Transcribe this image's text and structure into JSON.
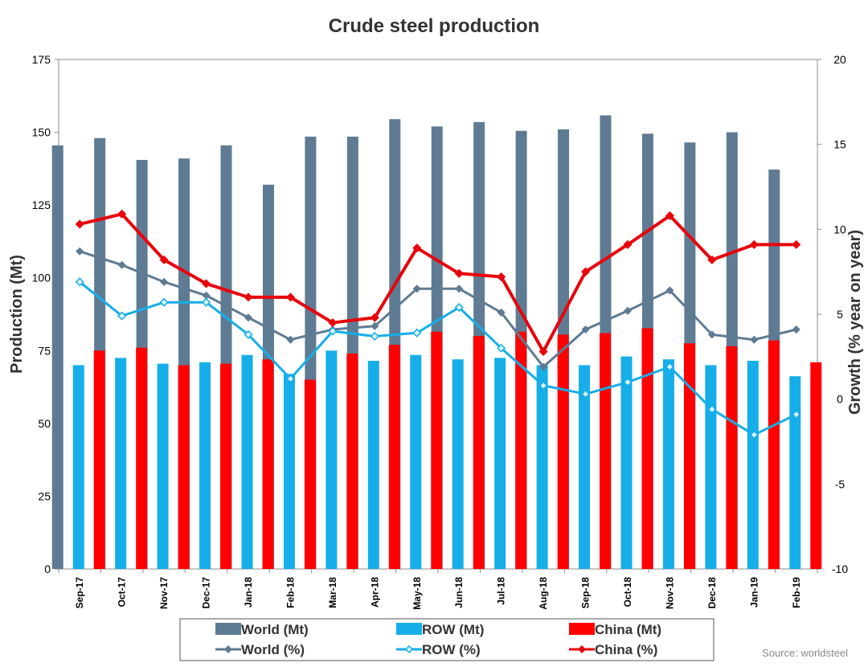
{
  "chart_data": {
    "type": "bar",
    "title": "Crude steel production",
    "ylabel": "Production (Mt)",
    "y2label": "Growth (% year on year)",
    "ylim": [
      0,
      175
    ],
    "y2lim": [
      -10,
      20
    ],
    "yticks": [
      "0",
      "25",
      "50",
      "75",
      "100",
      "125",
      "150",
      "175"
    ],
    "y2ticks": [
      "-10",
      "-5",
      "0",
      "5",
      "10",
      "15",
      "20"
    ],
    "grid": false,
    "legend_placement": "bottom",
    "categories": [
      "Sep-17",
      "Oct-17",
      "Nov-17",
      "Dec-17",
      "Jan-18",
      "Feb-18",
      "Mar-18",
      "Apr-18",
      "May-18",
      "Jun-18",
      "Jul-18",
      "Aug-18",
      "Sep-18",
      "Oct-18",
      "Nov-18",
      "Dec-18",
      "Jan-19",
      "Feb-19"
    ],
    "bar_series": [
      {
        "name": "World (Mt)",
        "color": "#5f7b93",
        "values": [
          145.5,
          148,
          140.5,
          141,
          145.5,
          132,
          148.5,
          148.5,
          154.5,
          152,
          153.5,
          150.5,
          151,
          155.8,
          149.5,
          146.5,
          150,
          137.2
        ]
      },
      {
        "name": "ROW (Mt)",
        "color": "#16aee8",
        "values": [
          70,
          72.5,
          70.5,
          71,
          73.5,
          67,
          75,
          71.5,
          73.5,
          72,
          72.5,
          70,
          70,
          73,
          72,
          70,
          71.5,
          66.2
        ]
      },
      {
        "name": "China (Mt)",
        "color": "#ff0000",
        "values": [
          75,
          76,
          70,
          70.5,
          72,
          65,
          74,
          77,
          81.5,
          80,
          81.5,
          80.5,
          81,
          82.7,
          77.5,
          76.5,
          78.5,
          71
        ]
      }
    ],
    "line_series": [
      {
        "name": "World (%)",
        "color": "#5f7b93",
        "axis": "right",
        "values": [
          8.7,
          7.9,
          6.9,
          6.1,
          4.8,
          3.5,
          4.1,
          4.3,
          6.5,
          6.5,
          5.1,
          1.9,
          4.1,
          5.2,
          6.4,
          3.8,
          3.5,
          4.1
        ]
      },
      {
        "name": "ROW (%)",
        "color": "#16aee8",
        "axis": "right",
        "values": [
          6.9,
          4.9,
          5.7,
          5.7,
          3.8,
          1.2,
          4.0,
          3.7,
          3.9,
          5.4,
          3.0,
          0.8,
          0.3,
          1.0,
          1.9,
          -0.6,
          -2.1,
          -0.9
        ]
      },
      {
        "name": "China (%)",
        "color": "#e8040c",
        "axis": "right",
        "values": [
          10.3,
          10.9,
          8.2,
          6.8,
          6.0,
          6.0,
          4.5,
          4.8,
          8.9,
          7.4,
          7.2,
          2.8,
          7.5,
          9.1,
          10.8,
          8.2,
          9.1,
          9.1
        ]
      }
    ],
    "source": "Source: worldsteel"
  }
}
